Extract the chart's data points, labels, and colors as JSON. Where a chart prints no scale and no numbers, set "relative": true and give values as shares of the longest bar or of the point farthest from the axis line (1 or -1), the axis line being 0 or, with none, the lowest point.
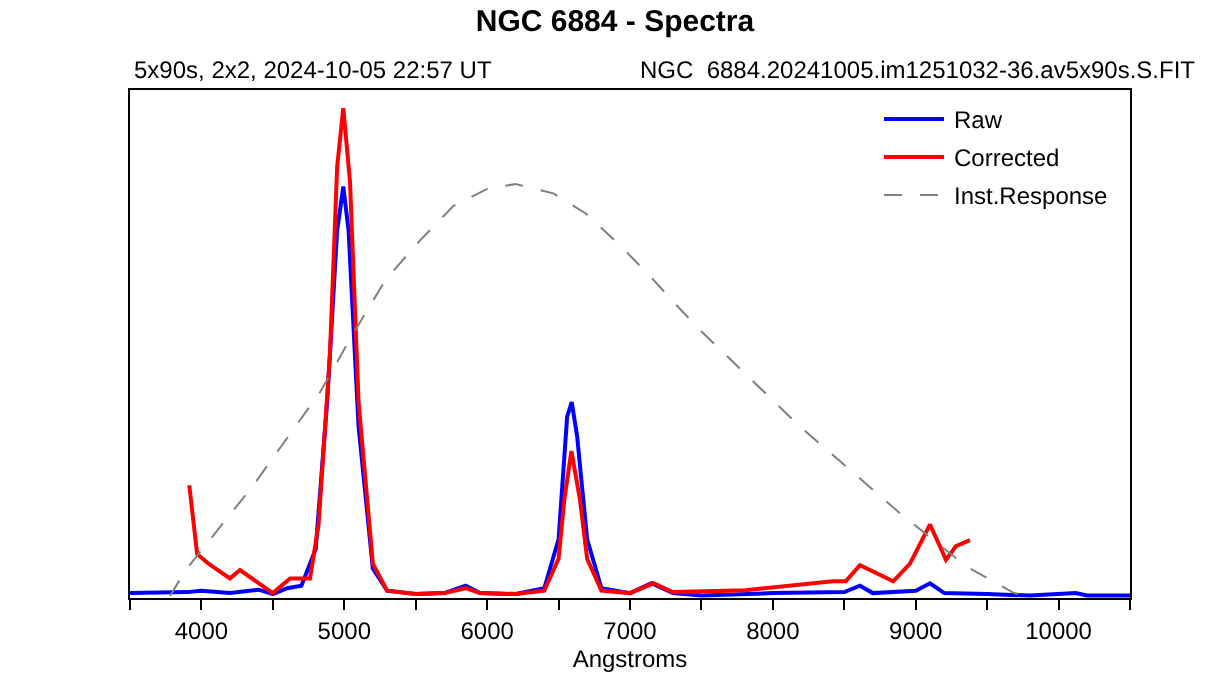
{
  "chart_data": {
    "type": "line",
    "title": "NGC 6884 - Spectra",
    "subtitle": "5x90s, 2x2, 2024-10-05 22:57 UT",
    "annotations": [
      "NGC  6884.20241005.im1251032-36.av5x90s.S.FIT"
    ],
    "xlabel": "Angstroms",
    "relative": true,
    "xlim": [
      3500,
      10500
    ],
    "xticks": [
      {
        "value": 3500,
        "label": null
      },
      4000,
      {
        "value": 4500,
        "label": null
      },
      5000,
      {
        "value": 5500,
        "label": null
      },
      6000,
      {
        "value": 6500,
        "label": null
      },
      7000,
      {
        "value": 7500,
        "label": null
      },
      8000,
      {
        "value": 8500,
        "label": null
      },
      9000,
      {
        "value": 9500,
        "label": null
      },
      10000,
      {
        "value": 10500,
        "label": null
      }
    ],
    "grid": false,
    "legend": "top right",
    "marker": "none",
    "series": [
      {
        "name": "Raw",
        "color": "#0000ff",
        "line_style": "solid",
        "x": [
          3500,
          3900,
          4000,
          4200,
          4400,
          4500,
          4600,
          4700,
          4800,
          4880,
          4950,
          4993,
          5030,
          5100,
          5200,
          5300,
          5500,
          5700,
          5850,
          5950,
          6200,
          6400,
          6500,
          6560,
          6592,
          6630,
          6700,
          6800,
          7000,
          7150,
          7300,
          7500,
          8000,
          8500,
          8610,
          8700,
          9000,
          9100,
          9200,
          9500,
          9800,
          10120,
          10200,
          10500
        ],
        "values": [
          0.01,
          0.012,
          0.015,
          0.01,
          0.017,
          0.008,
          0.02,
          0.025,
          0.1,
          0.4,
          0.75,
          0.84,
          0.75,
          0.35,
          0.06,
          0.015,
          0.008,
          0.01,
          0.025,
          0.01,
          0.008,
          0.02,
          0.12,
          0.37,
          0.4,
          0.33,
          0.12,
          0.02,
          0.01,
          0.03,
          0.01,
          0.005,
          0.01,
          0.012,
          0.025,
          0.01,
          0.015,
          0.03,
          0.01,
          0.008,
          0.005,
          0.01,
          0.005,
          0.005
        ]
      },
      {
        "name": "Corrected",
        "color": "#ff0000",
        "line_style": "solid",
        "x": [
          3915,
          3970,
          4050,
          4100,
          4200,
          4270,
          4500,
          4620,
          4760,
          4820,
          4900,
          4950,
          4993,
          5040,
          5100,
          5200,
          5300,
          5500,
          5700,
          5850,
          5950,
          6200,
          6400,
          6500,
          6540,
          6590,
          6650,
          6700,
          6800,
          7000,
          7164,
          7300,
          7810,
          8420,
          8510,
          8610,
          8843,
          8960,
          9100,
          9212,
          9282,
          9380
        ],
        "values": [
          0.23,
          0.09,
          0.07,
          0.06,
          0.04,
          0.057,
          0.01,
          0.04,
          0.04,
          0.15,
          0.5,
          0.88,
          1,
          0.85,
          0.4,
          0.07,
          0.015,
          0.008,
          0.01,
          0.02,
          0.01,
          0.008,
          0.015,
          0.08,
          0.2,
          0.3,
          0.2,
          0.08,
          0.015,
          0.01,
          0.03,
          0.012,
          0.016,
          0.034,
          0.034,
          0.067,
          0.034,
          0.07,
          0.15,
          0.078,
          0.106,
          0.118
        ]
      },
      {
        "name": "Inst.Response",
        "color": "#808080",
        "line_style": "dashed",
        "x": [
          3780,
          3890,
          4363,
          4830,
          5063,
          5290,
          5530,
          5763,
          6000,
          6200,
          6463,
          6690,
          6930,
          7163,
          7350,
          7490,
          8190,
          8890,
          9352,
          9688,
          9830
        ],
        "values": [
          0.004,
          0.057,
          0.23,
          0.42,
          0.54,
          0.65,
          0.73,
          0.8,
          0.835,
          0.845,
          0.826,
          0.785,
          0.72,
          0.65,
          0.59,
          0.547,
          0.35,
          0.173,
          0.065,
          0.01,
          0.003
        ]
      }
    ]
  }
}
